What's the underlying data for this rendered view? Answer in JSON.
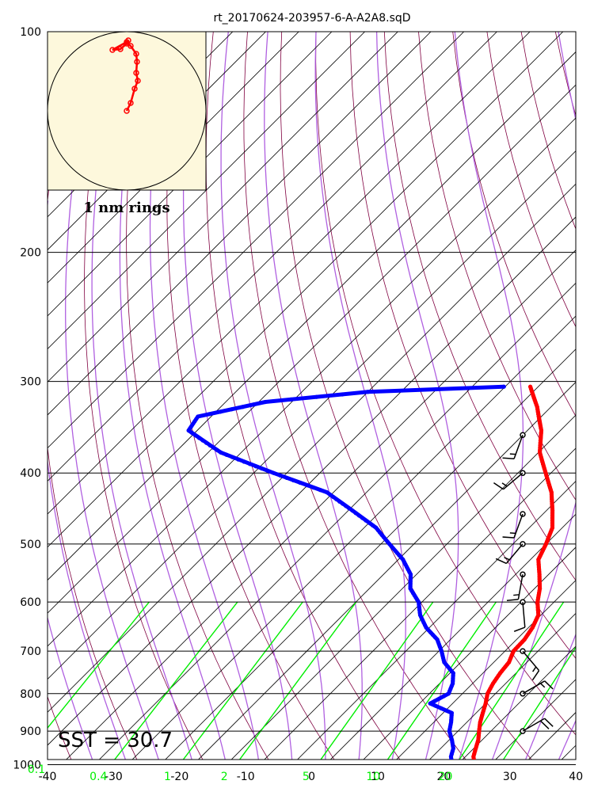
{
  "title": "rt_20170624-203957-6-A-A2A8.sqD",
  "sst_label": "SST = 30.7",
  "rings_label": "1 nm rings",
  "colors": {
    "temperature": "#ff0000",
    "dewpoint": "#0000ff",
    "isotherm": "#000000",
    "dry_adiabat": "#800040",
    "moist_adiabat": "#b060e0",
    "mixing_ratio": "#00ee00",
    "hodograph_bg": "#fdf8dc",
    "wind_barb": "#000000"
  },
  "chart_data": {
    "type": "skew-t",
    "pressure_ticks": [
      "100",
      "200",
      "300",
      "400",
      "500",
      "600",
      "700",
      "800",
      "900",
      "1000"
    ],
    "temp_ticks": [
      "-40",
      "-30",
      "-20",
      "-10",
      "0",
      "10",
      "20",
      "30",
      "40"
    ],
    "mixing_ratio_labels": [
      "0.1",
      "0.4",
      "1",
      "2",
      "5",
      "10",
      "20"
    ],
    "xlim": [
      -40,
      40
    ],
    "plim": [
      1050,
      100
    ],
    "temperature": [
      {
        "p": 1000,
        "t": 27.6
      },
      {
        "p": 975,
        "t": 26.2
      },
      {
        "p": 950,
        "t": 25.3
      },
      {
        "p": 925,
        "t": 24.4
      },
      {
        "p": 900,
        "t": 23.2
      },
      {
        "p": 875,
        "t": 22.0
      },
      {
        "p": 850,
        "t": 21.0
      },
      {
        "p": 825,
        "t": 20.0
      },
      {
        "p": 800,
        "t": 18.8
      },
      {
        "p": 775,
        "t": 18.1
      },
      {
        "p": 750,
        "t": 17.6
      },
      {
        "p": 725,
        "t": 17.3
      },
      {
        "p": 700,
        "t": 16.3
      },
      {
        "p": 675,
        "t": 16.2
      },
      {
        "p": 650,
        "t": 15.6
      },
      {
        "p": 625,
        "t": 14.6
      },
      {
        "p": 600,
        "t": 12.5
      },
      {
        "p": 575,
        "t": 10.8
      },
      {
        "p": 550,
        "t": 8.6
      },
      {
        "p": 525,
        "t": 6.2
      },
      {
        "p": 500,
        "t": 5.0
      },
      {
        "p": 475,
        "t": 3.5
      },
      {
        "p": 450,
        "t": 0.9
      },
      {
        "p": 425,
        "t": -2.0
      },
      {
        "p": 400,
        "t": -5.8
      },
      {
        "p": 375,
        "t": -9.8
      },
      {
        "p": 350,
        "t": -12.9
      },
      {
        "p": 325,
        "t": -17.1
      },
      {
        "p": 305,
        "t": -21.2
      }
    ],
    "dewpoint": [
      {
        "p": 1000,
        "t": 24.2
      },
      {
        "p": 975,
        "t": 22.8
      },
      {
        "p": 950,
        "t": 21.9
      },
      {
        "p": 925,
        "t": 20.4
      },
      {
        "p": 900,
        "t": 18.7
      },
      {
        "p": 875,
        "t": 17.6
      },
      {
        "p": 850,
        "t": 16.3
      },
      {
        "p": 825,
        "t": 11.6
      },
      {
        "p": 800,
        "t": 12.9
      },
      {
        "p": 775,
        "t": 12.0
      },
      {
        "p": 750,
        "t": 10.5
      },
      {
        "p": 725,
        "t": 7.5
      },
      {
        "p": 700,
        "t": 5.4
      },
      {
        "p": 675,
        "t": 3.0
      },
      {
        "p": 650,
        "t": -0.5
      },
      {
        "p": 625,
        "t": -3.3
      },
      {
        "p": 600,
        "t": -5.5
      },
      {
        "p": 575,
        "t": -8.8
      },
      {
        "p": 550,
        "t": -10.9
      },
      {
        "p": 525,
        "t": -14.3
      },
      {
        "p": 500,
        "t": -18.7
      },
      {
        "p": 475,
        "t": -23.2
      },
      {
        "p": 450,
        "t": -29.4
      },
      {
        "p": 425,
        "t": -36.0
      },
      {
        "p": 400,
        "t": -47.0
      },
      {
        "p": 375,
        "t": -58.1
      },
      {
        "p": 350,
        "t": -66.3
      },
      {
        "p": 335,
        "t": -67.0
      },
      {
        "p": 320,
        "t": -59.0
      },
      {
        "p": 310,
        "t": -45.0
      },
      {
        "p": 305,
        "t": -25.2
      }
    ],
    "wind_barbs": [
      {
        "p": 355,
        "dir": 200,
        "speed": 15
      },
      {
        "p": 400,
        "dir": 230,
        "speed": 15
      },
      {
        "p": 455,
        "dir": 200,
        "speed": 15
      },
      {
        "p": 500,
        "dir": 220,
        "speed": 15
      },
      {
        "p": 550,
        "dir": 190,
        "speed": 15
      },
      {
        "p": 600,
        "dir": 175,
        "speed": 10
      },
      {
        "p": 700,
        "dir": 140,
        "speed": 15
      },
      {
        "p": 800,
        "dir": 60,
        "speed": 15
      },
      {
        "p": 900,
        "dir": 60,
        "speed": 20
      }
    ],
    "hodograph_track": [
      [
        0.0,
        0.0
      ],
      [
        0.05,
        0.1
      ],
      [
        0.1,
        0.28
      ],
      [
        0.14,
        0.38
      ],
      [
        0.12,
        0.48
      ],
      [
        0.13,
        0.62
      ],
      [
        0.12,
        0.72
      ],
      [
        0.05,
        0.82
      ],
      [
        0.0,
        0.85
      ],
      [
        -0.08,
        0.78
      ],
      [
        -0.18,
        0.77
      ],
      [
        0.0,
        0.87
      ],
      [
        0.02,
        0.89
      ]
    ]
  }
}
